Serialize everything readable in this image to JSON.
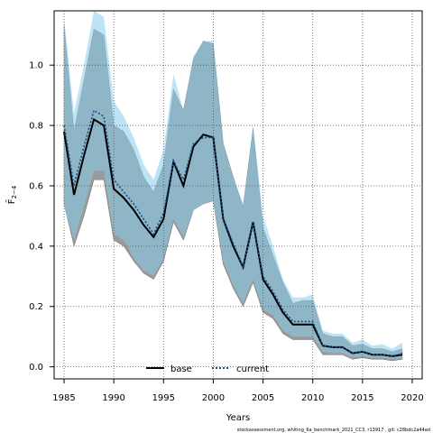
{
  "chart_data": {
    "type": "line",
    "xlabel": "Years",
    "ylabel": "F̄",
    "ylabel_sub": "2−4",
    "xlim": [
      1984,
      2021
    ],
    "ylim": [
      -0.04,
      1.18
    ],
    "xticks": [
      1985,
      1990,
      1995,
      2000,
      2005,
      2010,
      2015,
      2020
    ],
    "yticks": [
      0.0,
      0.2,
      0.4,
      0.6,
      0.8,
      1.0
    ],
    "ytick_labels": [
      "0.0",
      "0.2",
      "0.4",
      "0.6",
      "0.8",
      "1.0"
    ],
    "grid": true,
    "legend": {
      "placement": "bottom-center",
      "entries": [
        "base",
        "current"
      ]
    },
    "x": [
      1985,
      1986,
      1987,
      1988,
      1989,
      1990,
      1991,
      1992,
      1993,
      1994,
      1995,
      1996,
      1997,
      1998,
      1999,
      2000,
      2001,
      2002,
      2003,
      2004,
      2005,
      2006,
      2007,
      2008,
      2009,
      2010,
      2011,
      2012,
      2013,
      2014,
      2015,
      2016,
      2017,
      2018,
      2019
    ],
    "series": [
      {
        "name": "base",
        "color": "#000000",
        "fill": "#9a9a9a",
        "values": [
          0.78,
          0.57,
          0.7,
          0.82,
          0.8,
          0.59,
          0.56,
          0.52,
          0.47,
          0.43,
          0.49,
          0.68,
          0.6,
          0.73,
          0.77,
          0.76,
          0.49,
          0.4,
          0.33,
          0.48,
          0.29,
          0.24,
          0.18,
          0.14,
          0.14,
          0.14,
          0.07,
          0.065,
          0.065,
          0.045,
          0.05,
          0.04,
          0.04,
          0.035,
          0.04
        ],
        "lower": [
          0.54,
          0.4,
          0.5,
          0.62,
          0.62,
          0.42,
          0.4,
          0.35,
          0.31,
          0.29,
          0.35,
          0.48,
          0.42,
          0.52,
          0.54,
          0.55,
          0.34,
          0.26,
          0.2,
          0.28,
          0.18,
          0.16,
          0.11,
          0.09,
          0.09,
          0.09,
          0.04,
          0.04,
          0.04,
          0.025,
          0.03,
          0.025,
          0.025,
          0.02,
          0.025
        ],
        "upper": [
          1.13,
          0.78,
          0.95,
          1.12,
          1.1,
          0.8,
          0.78,
          0.72,
          0.63,
          0.58,
          0.67,
          0.92,
          0.85,
          1.02,
          1.08,
          1.07,
          0.74,
          0.63,
          0.53,
          0.79,
          0.46,
          0.37,
          0.28,
          0.21,
          0.22,
          0.22,
          0.11,
          0.1,
          0.1,
          0.07,
          0.075,
          0.06,
          0.06,
          0.05,
          0.06
        ]
      },
      {
        "name": "current",
        "color": "#1a4a8a",
        "fill": "#87ceeb",
        "values": [
          0.8,
          0.6,
          0.73,
          0.85,
          0.83,
          0.62,
          0.58,
          0.54,
          0.49,
          0.44,
          0.51,
          0.68,
          0.62,
          0.74,
          0.76,
          0.76,
          0.49,
          0.41,
          0.33,
          0.48,
          0.3,
          0.25,
          0.19,
          0.15,
          0.15,
          0.15,
          0.07,
          0.065,
          0.065,
          0.045,
          0.05,
          0.04,
          0.04,
          0.035,
          0.045
        ],
        "lower": [
          0.53,
          0.42,
          0.53,
          0.65,
          0.65,
          0.44,
          0.42,
          0.36,
          0.32,
          0.3,
          0.36,
          0.49,
          0.43,
          0.52,
          0.54,
          0.55,
          0.35,
          0.27,
          0.21,
          0.29,
          0.19,
          0.17,
          0.12,
          0.1,
          0.1,
          0.1,
          0.05,
          0.045,
          0.045,
          0.03,
          0.035,
          0.03,
          0.03,
          0.025,
          0.03
        ],
        "upper": [
          1.16,
          0.84,
          1.0,
          1.18,
          1.16,
          0.88,
          0.83,
          0.76,
          0.67,
          0.62,
          0.72,
          0.97,
          0.85,
          1.03,
          1.08,
          1.08,
          0.74,
          0.63,
          0.54,
          0.8,
          0.5,
          0.4,
          0.29,
          0.23,
          0.23,
          0.24,
          0.12,
          0.11,
          0.11,
          0.08,
          0.09,
          0.07,
          0.075,
          0.06,
          0.08
        ]
      }
    ]
  },
  "footnote": "stockassessment.org, whiting_6a_benchmark_2021_CC3, r13917 , git: c28bdc2a44ad"
}
